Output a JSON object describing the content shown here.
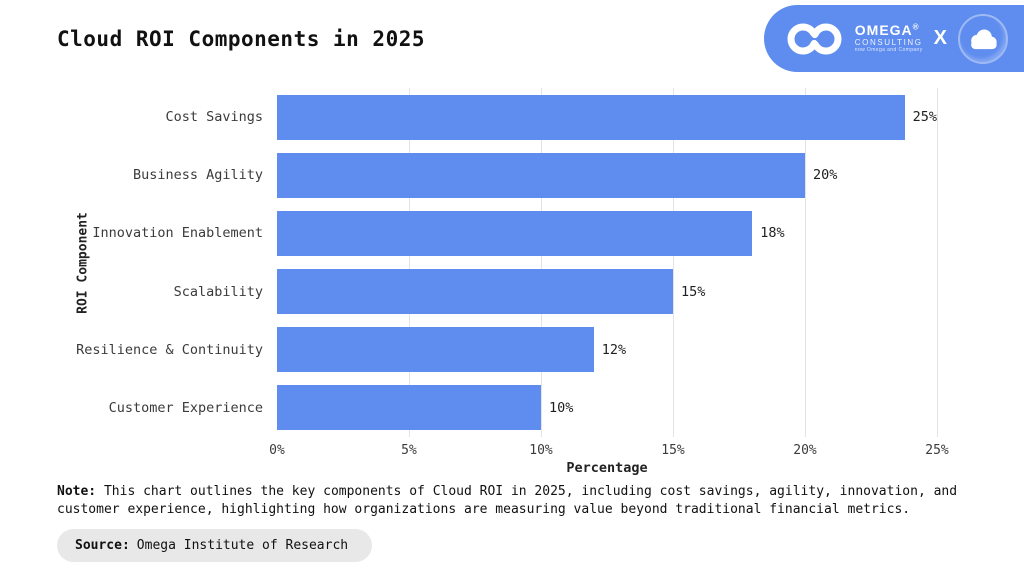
{
  "header": {
    "title": "Cloud ROI Components in 2025",
    "logo": {
      "pill_color": "#5e8cef",
      "brand": "OMEGA",
      "registered": "®",
      "sub_brand": "CONSULTING",
      "tagline": "now Omega and Company",
      "separator": "X"
    }
  },
  "chart_data": {
    "type": "bar",
    "orientation": "horizontal",
    "title": "Cloud ROI Components in 2025",
    "categories": [
      "Cost Savings",
      "Business Agility",
      "Innovation Enablement",
      "Scalability",
      "Resilience & Continuity",
      "Customer Experience"
    ],
    "values": [
      25,
      20,
      18,
      15,
      12,
      10
    ],
    "value_labels": [
      "25%",
      "20%",
      "18%",
      "15%",
      "12%",
      "10%"
    ],
    "xlabel": "Percentage",
    "ylabel": "ROI Component",
    "xlim": [
      0,
      25
    ],
    "x_ticks": [
      {
        "value": 0,
        "label": "0%"
      },
      {
        "value": 5,
        "label": "5%"
      },
      {
        "value": 10,
        "label": "10%"
      },
      {
        "value": 15,
        "label": "15%"
      },
      {
        "value": 20,
        "label": "20%"
      },
      {
        "value": 25,
        "label": "25%"
      }
    ],
    "bar_color": "#5e8cef",
    "gridline_color": "#e3e3e3",
    "grid": true,
    "legend": false
  },
  "note": {
    "label": "Note:",
    "text": "This chart outlines the key components of Cloud ROI in 2025, including cost savings, agility, innovation, and customer experience, highlighting how organizations are measuring value beyond traditional financial metrics."
  },
  "source": {
    "label": "Source:",
    "text": "Omega Institute of Research"
  }
}
